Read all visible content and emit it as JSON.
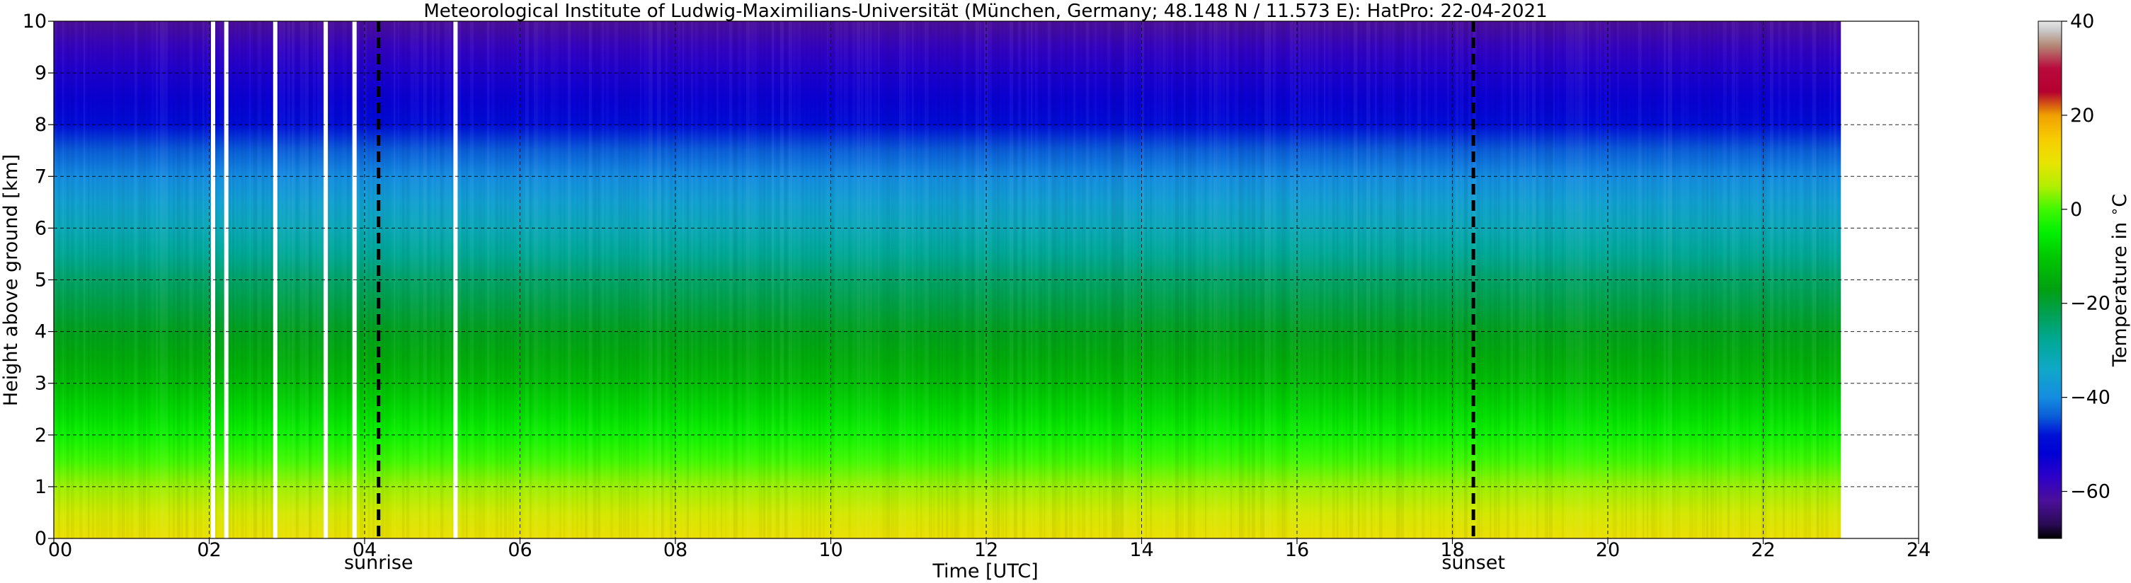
{
  "chart_data": {
    "type": "heatmap",
    "title": "Meteorological Institute of Ludwig-Maximilians-Universität (München, Germany; 48.148 N / 11.573 E):    HatPro: 22-04-2021",
    "xlabel": "Time [UTC]",
    "ylabel": "Height above ground [km]",
    "xlim": [
      0,
      24
    ],
    "ylim": [
      0,
      10
    ],
    "x_ticks": [
      "00",
      "02",
      "04",
      "06",
      "08",
      "10",
      "12",
      "14",
      "16",
      "18",
      "20",
      "22",
      "24"
    ],
    "y_ticks": [
      "0",
      "1",
      "2",
      "3",
      "4",
      "5",
      "6",
      "7",
      "8",
      "9",
      "10"
    ],
    "grid": true,
    "data_time_range": [
      0,
      23
    ],
    "missing_data_times": [
      2.05,
      2.22,
      2.85,
      3.5,
      3.87,
      5.17
    ],
    "events": [
      {
        "label": "sunrise",
        "time": 4.18
      },
      {
        "label": "sunset",
        "time": 18.27
      }
    ],
    "temperature_profile": {
      "heights_km": [
        0,
        0.5,
        1,
        1.5,
        2,
        2.5,
        3,
        3.5,
        4,
        4.5,
        5,
        5.5,
        6,
        6.5,
        7,
        7.5,
        8,
        8.5,
        9,
        9.5,
        10
      ],
      "temperature_c": [
        11,
        8,
        4,
        0,
        -4,
        -8,
        -12,
        -15,
        -18,
        -21,
        -24,
        -28,
        -32,
        -36,
        -40,
        -44,
        -49,
        -53,
        -55,
        -58,
        -62
      ]
    },
    "colorbar": {
      "label": "Temperature in $^\\circ$C",
      "range": [
        -70,
        40
      ],
      "ticks": [
        "40",
        "20",
        "0",
        "−20",
        "−40",
        "−60"
      ],
      "colormap": [
        {
          "t": -70,
          "color": "#000000"
        },
        {
          "t": -67,
          "color": "#2a0a55"
        },
        {
          "t": -62,
          "color": "#4b0f99"
        },
        {
          "t": -57,
          "color": "#2e00c8"
        },
        {
          "t": -52,
          "color": "#0000d4"
        },
        {
          "t": -48,
          "color": "#0010d6"
        },
        {
          "t": -44,
          "color": "#0a5ed8"
        },
        {
          "t": -40,
          "color": "#148ce0"
        },
        {
          "t": -34,
          "color": "#10a8c8"
        },
        {
          "t": -28,
          "color": "#00a896"
        },
        {
          "t": -22,
          "color": "#00a050"
        },
        {
          "t": -17,
          "color": "#00a010"
        },
        {
          "t": -10,
          "color": "#00c800"
        },
        {
          "t": -5,
          "color": "#00f000"
        },
        {
          "t": 0,
          "color": "#40f800"
        },
        {
          "t": 5,
          "color": "#b4ee00"
        },
        {
          "t": 10,
          "color": "#e8e400"
        },
        {
          "t": 15,
          "color": "#f8cc00"
        },
        {
          "t": 20,
          "color": "#f0a000"
        },
        {
          "t": 22,
          "color": "#d86010"
        },
        {
          "t": 25,
          "color": "#b40030"
        },
        {
          "t": 30,
          "color": "#b80a3c"
        },
        {
          "t": 35,
          "color": "#b48c78"
        },
        {
          "t": 38,
          "color": "#c8c8c8"
        },
        {
          "t": 40,
          "color": "#e6e6e6"
        }
      ]
    }
  }
}
